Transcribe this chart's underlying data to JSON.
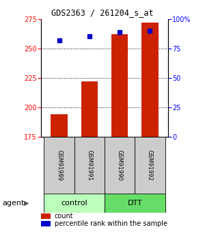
{
  "title": "GDS2363 / 261204_s_at",
  "samples": [
    "GSM91989",
    "GSM91991",
    "GSM91990",
    "GSM91992"
  ],
  "bar_values": [
    194,
    222,
    262,
    272
  ],
  "percentile_values": [
    82,
    85,
    89,
    90
  ],
  "bar_color": "#cc2200",
  "point_color": "#0000cc",
  "ylim_left": [
    175,
    275
  ],
  "ylim_right": [
    0,
    100
  ],
  "yticks_left": [
    175,
    200,
    225,
    250,
    275
  ],
  "yticks_right": [
    0,
    25,
    50,
    75,
    100
  ],
  "yticklabels_right": [
    "0",
    "25",
    "50",
    "75",
    "100%"
  ],
  "grid_lines": [
    200,
    225,
    250
  ],
  "groups": [
    {
      "label": "control",
      "indices": [
        0,
        1
      ],
      "color": "#bbffbb"
    },
    {
      "label": "DTT",
      "indices": [
        2,
        3
      ],
      "color": "#66dd66"
    }
  ],
  "agent_label": "agent",
  "legend_count_label": "count",
  "legend_pct_label": "percentile rank within the sample",
  "bar_color_legend": "#cc2200",
  "point_color_legend": "#0000cc",
  "bar_width": 0.55,
  "bar_bottom": 175
}
